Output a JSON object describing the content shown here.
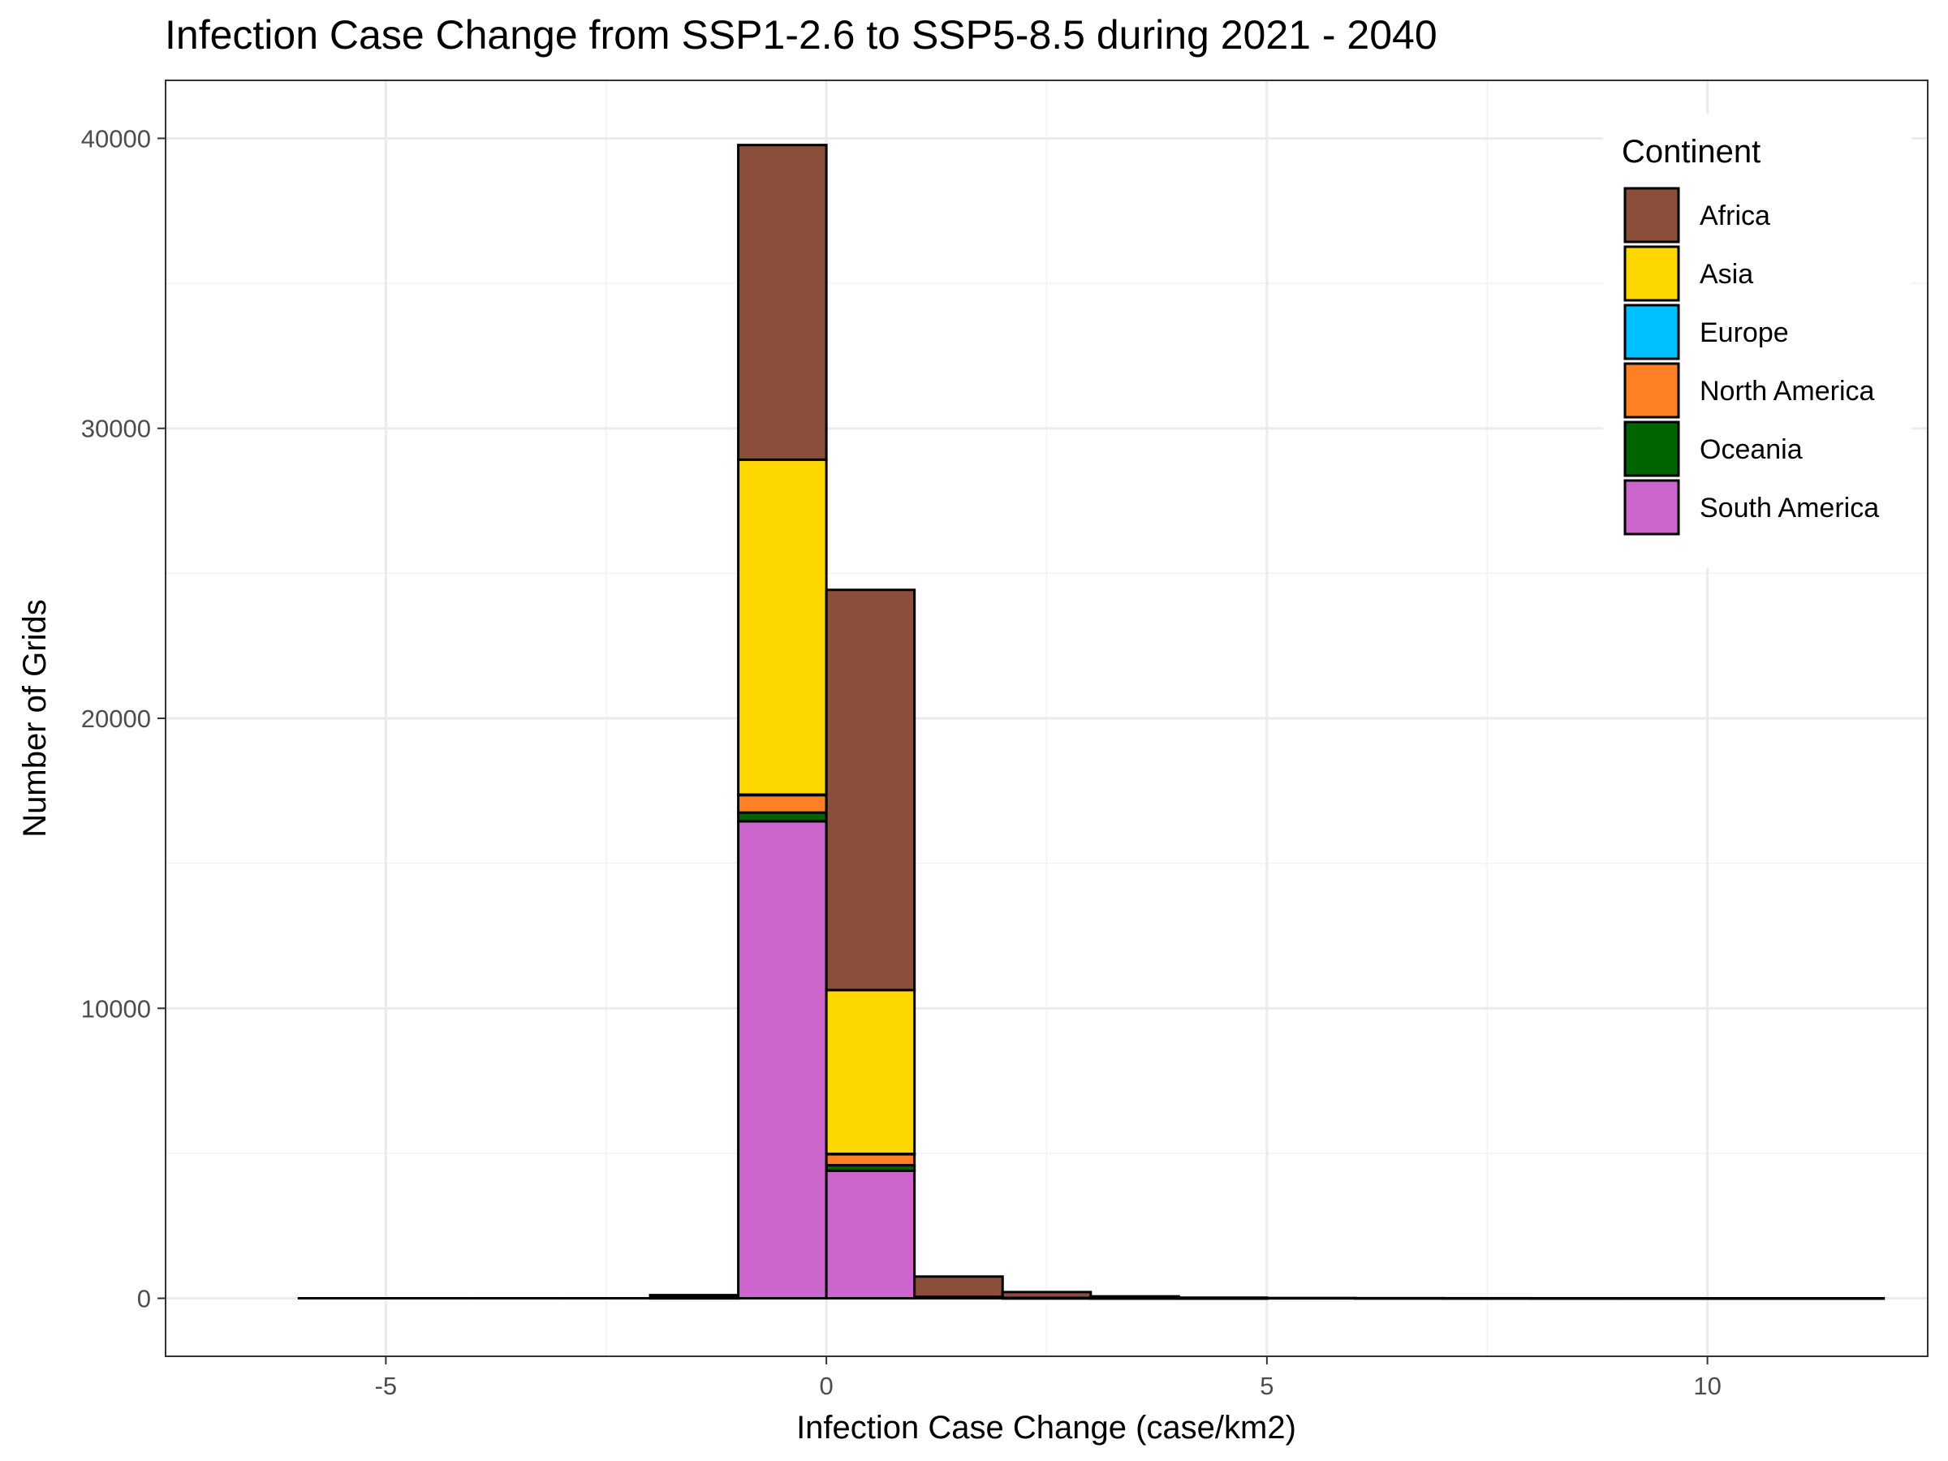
{
  "chart_data": {
    "type": "bar",
    "subtype": "stacked-histogram",
    "title": "Infection Case Change from SSP1-2.6 to SSP5-8.5 during 2021 - 2040",
    "xlabel": "Infection Case Change (case/km2)",
    "ylabel": "Number of Grids",
    "xlim": [
      -7.5,
      12.5
    ],
    "ylim": [
      -2000,
      42000
    ],
    "x_ticks": [
      -5,
      0,
      5,
      10
    ],
    "x_tick_labels": [
      "-5",
      "0",
      "5",
      "10"
    ],
    "y_ticks": [
      0,
      10000,
      20000,
      30000,
      40000
    ],
    "y_tick_labels": [
      "0",
      "10000",
      "20000",
      "30000",
      "40000"
    ],
    "grid": true,
    "legend": {
      "title": "Continent",
      "position": "top-right"
    },
    "bin_width": 1,
    "bins": [
      -6,
      -5,
      -4,
      -3,
      -2,
      -1,
      0,
      1,
      2,
      3,
      4,
      5,
      6,
      7,
      8,
      9,
      10,
      11
    ],
    "series": [
      {
        "name": "Africa",
        "color": "#8B4E3B",
        "values": [
          0,
          0,
          0,
          0,
          80,
          10850,
          13800,
          700,
          200,
          60,
          20,
          10,
          5,
          3,
          2,
          2,
          1,
          1
        ]
      },
      {
        "name": "Asia",
        "color": "#FFD700",
        "values": [
          0,
          0,
          0,
          0,
          20,
          11550,
          5650,
          20,
          10,
          5,
          2,
          0,
          0,
          0,
          0,
          0,
          0,
          0
        ]
      },
      {
        "name": "Europe",
        "color": "#00BFFF",
        "values": [
          0,
          0,
          0,
          0,
          0,
          20,
          10,
          0,
          0,
          0,
          0,
          0,
          0,
          0,
          0,
          0,
          0,
          0
        ]
      },
      {
        "name": "North America",
        "color": "#FF7F24",
        "values": [
          0,
          0,
          0,
          0,
          0,
          600,
          380,
          10,
          0,
          0,
          0,
          0,
          0,
          0,
          0,
          0,
          0,
          0
        ]
      },
      {
        "name": "Oceania",
        "color": "#006400",
        "values": [
          0,
          0,
          0,
          0,
          0,
          300,
          190,
          0,
          0,
          0,
          0,
          0,
          0,
          0,
          0,
          0,
          0,
          0
        ]
      },
      {
        "name": "South America",
        "color": "#CC66CC",
        "values": [
          0,
          0,
          0,
          0,
          10,
          16450,
          4400,
          20,
          5,
          2,
          1,
          0,
          0,
          0,
          0,
          0,
          0,
          0
        ]
      }
    ]
  }
}
